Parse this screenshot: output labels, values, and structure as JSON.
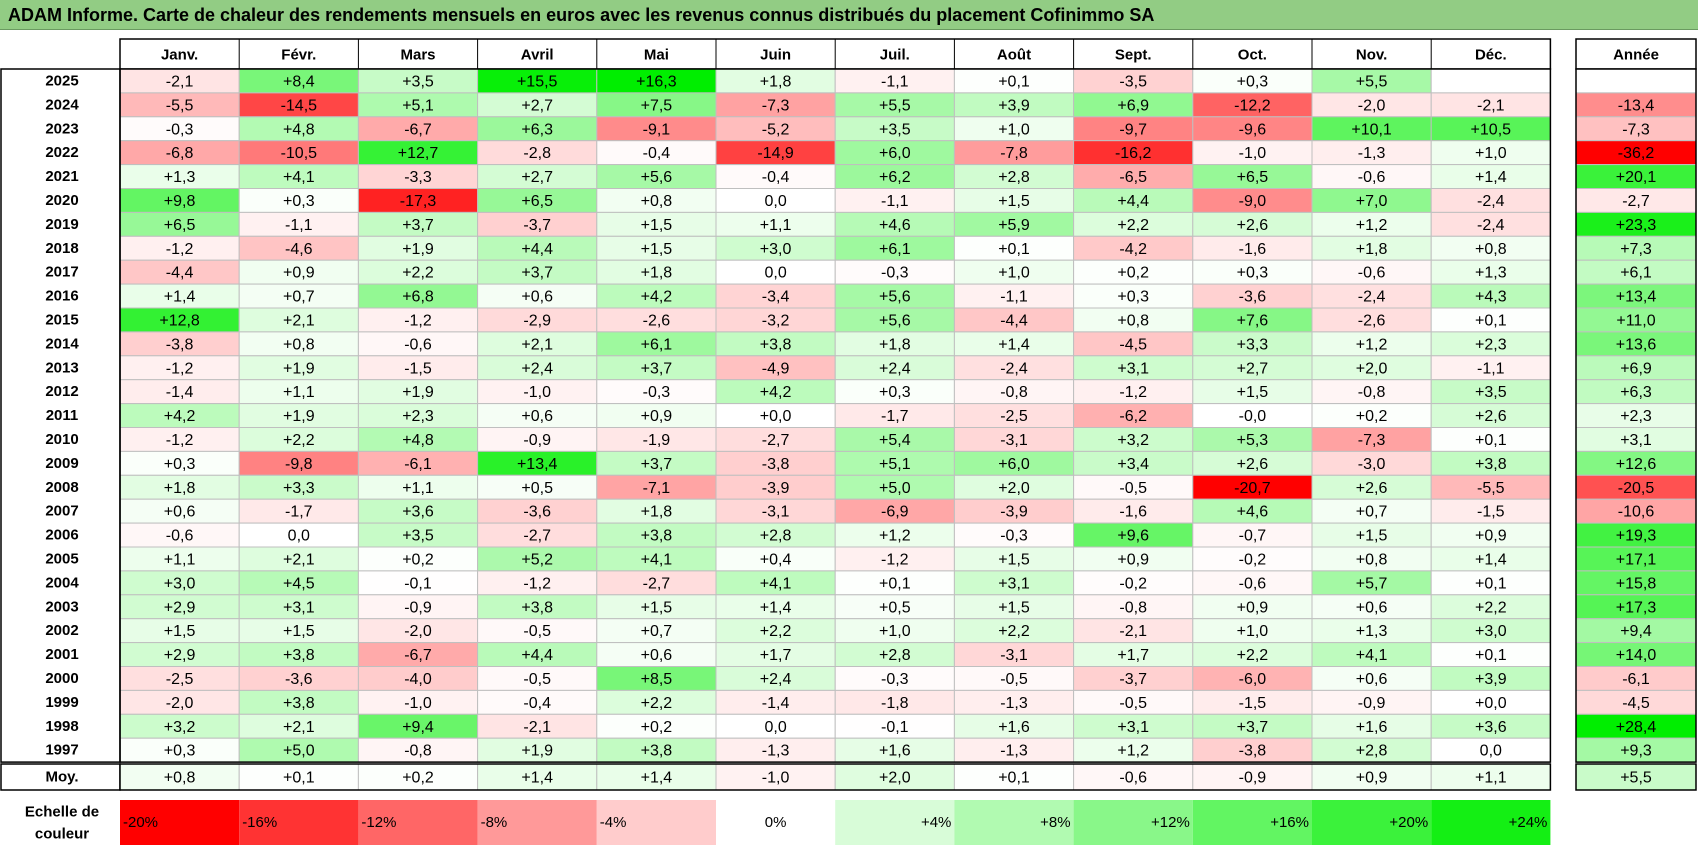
{
  "title": "ADAM Informe. Carte de chaleur des rendements mensuels en euros avec les revenus connus distribués du placement Cofinimmo SA",
  "chart_data": {
    "type": "heatmap",
    "columns": [
      "Janv.",
      "Févr.",
      "Mars",
      "Avril",
      "Mai",
      "Juin",
      "Juil.",
      "Août",
      "Sept.",
      "Oct.",
      "Nov.",
      "Déc."
    ],
    "annual_header": "Année",
    "rows": [
      {
        "year": "2025",
        "values": [
          "-2,1",
          "+8,4",
          "+3,5",
          "+15,5",
          "+16,3",
          "+1,8",
          "-1,1",
          "+0,1",
          "-3,5",
          "+0,3",
          "+5,5",
          ""
        ],
        "annual": ""
      },
      {
        "year": "2024",
        "values": [
          "-5,5",
          "-14,5",
          "+5,1",
          "+2,7",
          "+7,5",
          "-7,3",
          "+5,5",
          "+3,9",
          "+6,9",
          "-12,2",
          "-2,0",
          "-2,1"
        ],
        "annual": "-13,4"
      },
      {
        "year": "2023",
        "values": [
          "-0,3",
          "+4,8",
          "-6,7",
          "+6,3",
          "-9,1",
          "-5,2",
          "+3,5",
          "+1,0",
          "-9,7",
          "-9,6",
          "+10,1",
          "+10,5"
        ],
        "annual": "-7,3"
      },
      {
        "year": "2022",
        "values": [
          "-6,8",
          "-10,5",
          "+12,7",
          "-2,8",
          "-0,4",
          "-14,9",
          "+6,0",
          "-7,8",
          "-16,2",
          "-1,0",
          "-1,3",
          "+1,0"
        ],
        "annual": "-36,2"
      },
      {
        "year": "2021",
        "values": [
          "+1,3",
          "+4,1",
          "-3,3",
          "+2,7",
          "+5,6",
          "-0,4",
          "+6,2",
          "+2,8",
          "-6,5",
          "+6,5",
          "-0,6",
          "+1,4"
        ],
        "annual": "+20,1"
      },
      {
        "year": "2020",
        "values": [
          "+9,8",
          "+0,3",
          "-17,3",
          "+6,5",
          "+0,8",
          "0,0",
          "-1,1",
          "+1,5",
          "+4,4",
          "-9,0",
          "+7,0",
          "-2,4"
        ],
        "annual": "-2,7"
      },
      {
        "year": "2019",
        "values": [
          "+6,5",
          "-1,1",
          "+3,7",
          "-3,7",
          "+1,5",
          "+1,1",
          "+4,6",
          "+5,9",
          "+2,2",
          "+2,6",
          "+1,2",
          "-2,4"
        ],
        "annual": "+23,3"
      },
      {
        "year": "2018",
        "values": [
          "-1,2",
          "-4,6",
          "+1,9",
          "+4,4",
          "+1,5",
          "+3,0",
          "+6,1",
          "+0,1",
          "-4,2",
          "-1,6",
          "+1,8",
          "+0,8"
        ],
        "annual": "+7,3"
      },
      {
        "year": "2017",
        "values": [
          "-4,4",
          "+0,9",
          "+2,2",
          "+3,7",
          "+1,8",
          "0,0",
          "-0,3",
          "+1,0",
          "+0,2",
          "+0,3",
          "-0,6",
          "+1,3"
        ],
        "annual": "+6,1"
      },
      {
        "year": "2016",
        "values": [
          "+1,4",
          "+0,7",
          "+6,8",
          "+0,6",
          "+4,2",
          "-3,4",
          "+5,6",
          "-1,1",
          "+0,3",
          "-3,6",
          "-2,4",
          "+4,3"
        ],
        "annual": "+13,4"
      },
      {
        "year": "2015",
        "values": [
          "+12,8",
          "+2,1",
          "-1,2",
          "-2,9",
          "-2,6",
          "-3,2",
          "+5,6",
          "-4,4",
          "+0,8",
          "+7,6",
          "-2,6",
          "+0,1"
        ],
        "annual": "+11,0"
      },
      {
        "year": "2014",
        "values": [
          "-3,8",
          "+0,8",
          "-0,6",
          "+2,1",
          "+6,1",
          "+3,8",
          "+1,8",
          "+1,4",
          "-4,5",
          "+3,3",
          "+1,2",
          "+2,3"
        ],
        "annual": "+13,6"
      },
      {
        "year": "2013",
        "values": [
          "-1,2",
          "+1,9",
          "-1,5",
          "+2,4",
          "+3,7",
          "-4,9",
          "+2,4",
          "-2,4",
          "+3,1",
          "+2,7",
          "+2,0",
          "-1,1"
        ],
        "annual": "+6,9"
      },
      {
        "year": "2012",
        "values": [
          "-1,4",
          "+1,1",
          "+1,9",
          "-1,0",
          "-0,3",
          "+4,2",
          "+0,3",
          "-0,8",
          "-1,2",
          "+1,5",
          "-0,8",
          "+3,5"
        ],
        "annual": "+6,3"
      },
      {
        "year": "2011",
        "values": [
          "+4,2",
          "+1,9",
          "+2,3",
          "+0,6",
          "+0,9",
          "+0,0",
          "-1,7",
          "-2,5",
          "-6,2",
          "-0,0",
          "+0,2",
          "+2,6"
        ],
        "annual": "+2,3"
      },
      {
        "year": "2010",
        "values": [
          "-1,2",
          "+2,2",
          "+4,8",
          "-0,9",
          "-1,9",
          "-2,7",
          "+5,4",
          "-3,1",
          "+3,2",
          "+5,3",
          "-7,3",
          "+0,1"
        ],
        "annual": "+3,1"
      },
      {
        "year": "2009",
        "values": [
          "+0,3",
          "-9,8",
          "-6,1",
          "+13,4",
          "+3,7",
          "-3,8",
          "+5,1",
          "+6,0",
          "+3,4",
          "+2,6",
          "-3,0",
          "+3,8"
        ],
        "annual": "+12,6"
      },
      {
        "year": "2008",
        "values": [
          "+1,8",
          "+3,3",
          "+1,1",
          "+0,5",
          "-7,1",
          "-3,9",
          "+5,0",
          "+2,0",
          "-0,5",
          "-20,7",
          "+2,6",
          "-5,5"
        ],
        "annual": "-20,5"
      },
      {
        "year": "2007",
        "values": [
          "+0,6",
          "-1,7",
          "+3,6",
          "-3,6",
          "+1,8",
          "-3,1",
          "-6,9",
          "-3,9",
          "-1,6",
          "+4,6",
          "+0,7",
          "-1,5"
        ],
        "annual": "-10,6"
      },
      {
        "year": "2006",
        "values": [
          "-0,6",
          "0,0",
          "+3,5",
          "-2,7",
          "+3,8",
          "+2,8",
          "+1,2",
          "-0,3",
          "+9,6",
          "-0,7",
          "+1,5",
          "+0,9"
        ],
        "annual": "+19,3"
      },
      {
        "year": "2005",
        "values": [
          "+1,1",
          "+2,1",
          "+0,2",
          "+5,2",
          "+4,1",
          "+0,4",
          "-1,2",
          "+1,5",
          "+0,9",
          "-0,2",
          "+0,8",
          "+1,4"
        ],
        "annual": "+17,1"
      },
      {
        "year": "2004",
        "values": [
          "+3,0",
          "+4,5",
          "-0,1",
          "-1,2",
          "-2,7",
          "+4,1",
          "+0,1",
          "+3,1",
          "-0,2",
          "-0,6",
          "+5,7",
          "+0,1"
        ],
        "annual": "+15,8"
      },
      {
        "year": "2003",
        "values": [
          "+2,9",
          "+3,1",
          "-0,9",
          "+3,8",
          "+1,5",
          "+1,4",
          "+0,5",
          "+1,5",
          "-0,8",
          "+0,9",
          "+0,6",
          "+2,2"
        ],
        "annual": "+17,3"
      },
      {
        "year": "2002",
        "values": [
          "+1,5",
          "+1,5",
          "-2,0",
          "-0,5",
          "+0,7",
          "+2,2",
          "+1,0",
          "+2,2",
          "-2,1",
          "+1,0",
          "+1,3",
          "+3,0"
        ],
        "annual": "+9,4"
      },
      {
        "year": "2001",
        "values": [
          "+2,9",
          "+3,8",
          "-6,7",
          "+4,4",
          "+0,6",
          "+1,7",
          "+2,8",
          "-3,1",
          "+1,7",
          "+2,2",
          "+4,1",
          "+0,1"
        ],
        "annual": "+14,0"
      },
      {
        "year": "2000",
        "values": [
          "-2,5",
          "-3,6",
          "-4,0",
          "-0,5",
          "+8,5",
          "+2,4",
          "-0,3",
          "-0,5",
          "-3,7",
          "-6,0",
          "+0,6",
          "+3,9"
        ],
        "annual": "-6,1"
      },
      {
        "year": "1999",
        "values": [
          "-2,0",
          "+3,8",
          "-1,0",
          "-0,4",
          "+2,2",
          "-1,4",
          "-1,8",
          "-1,3",
          "-0,5",
          "-1,5",
          "-0,9",
          "+0,0"
        ],
        "annual": "-4,5"
      },
      {
        "year": "1998",
        "values": [
          "+3,2",
          "+2,1",
          "+9,4",
          "-2,1",
          "+0,2",
          "0,0",
          "-0,1",
          "+1,6",
          "+3,1",
          "+3,7",
          "+1,6",
          "+3,6"
        ],
        "annual": "+28,4"
      },
      {
        "year": "1997",
        "values": [
          "+0,3",
          "+5,0",
          "-0,8",
          "+1,9",
          "+3,8",
          "-1,3",
          "+1,6",
          "-1,3",
          "+1,2",
          "-3,8",
          "+2,8",
          "0,0"
        ],
        "annual": "+9,3"
      }
    ],
    "average": {
      "label": "Moy.",
      "values": [
        "+0,8",
        "+0,1",
        "+0,2",
        "+1,4",
        "+1,4",
        "-1,0",
        "+2,0",
        "+0,1",
        "-0,6",
        "-0,9",
        "+0,9",
        "+1,1"
      ],
      "annual": "+5,5"
    },
    "scale": {
      "label_line1": "Echelle de",
      "label_line2": "couleur",
      "labels": [
        "-20%",
        "-16%",
        "-12%",
        "-8%",
        "-4%",
        "0%",
        "+4%",
        "+8%",
        "+12%",
        "+16%",
        "+20%",
        "+24%"
      ],
      "values": [
        -20,
        -16,
        -12,
        -8,
        -4,
        0,
        4,
        8,
        12,
        16,
        20,
        24
      ]
    },
    "colors": {
      "negative_max": "#ff0000",
      "neutral": "#ffffff",
      "positive_max": "#00ee00",
      "title_bar": "#92cc84"
    }
  }
}
